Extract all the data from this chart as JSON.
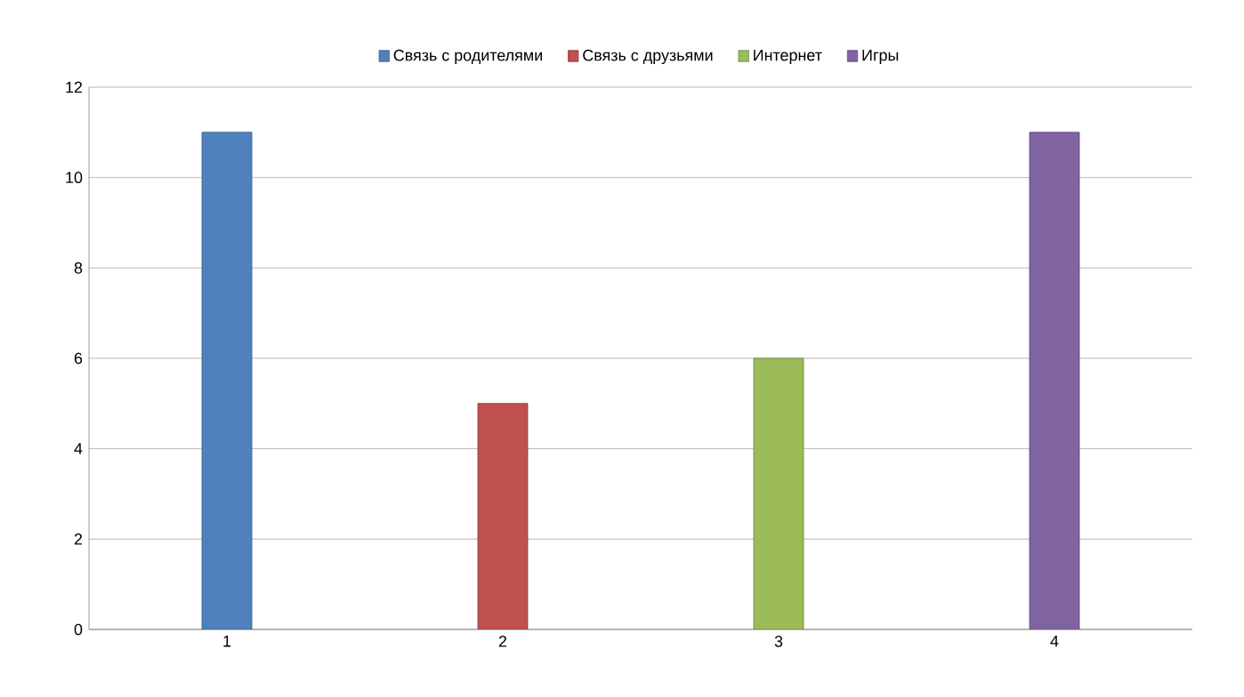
{
  "chart_data": {
    "type": "bar",
    "categories": [
      "1",
      "2",
      "3",
      "4"
    ],
    "series": [
      {
        "name": "Связь с родителями",
        "color": "#4f81bd",
        "values": [
          11,
          null,
          null,
          null
        ]
      },
      {
        "name": "Связь с друзьями",
        "color": "#c0504d",
        "values": [
          null,
          5,
          null,
          null
        ]
      },
      {
        "name": "Интернет",
        "color": "#9bbb59",
        "values": [
          null,
          null,
          6,
          null
        ]
      },
      {
        "name": "Игры",
        "color": "#8064a2",
        "values": [
          null,
          null,
          null,
          11
        ]
      }
    ],
    "ylim": [
      0,
      12
    ],
    "yticks": [
      0,
      2,
      4,
      6,
      8,
      10,
      12
    ],
    "grid": "y",
    "legend": "top"
  }
}
